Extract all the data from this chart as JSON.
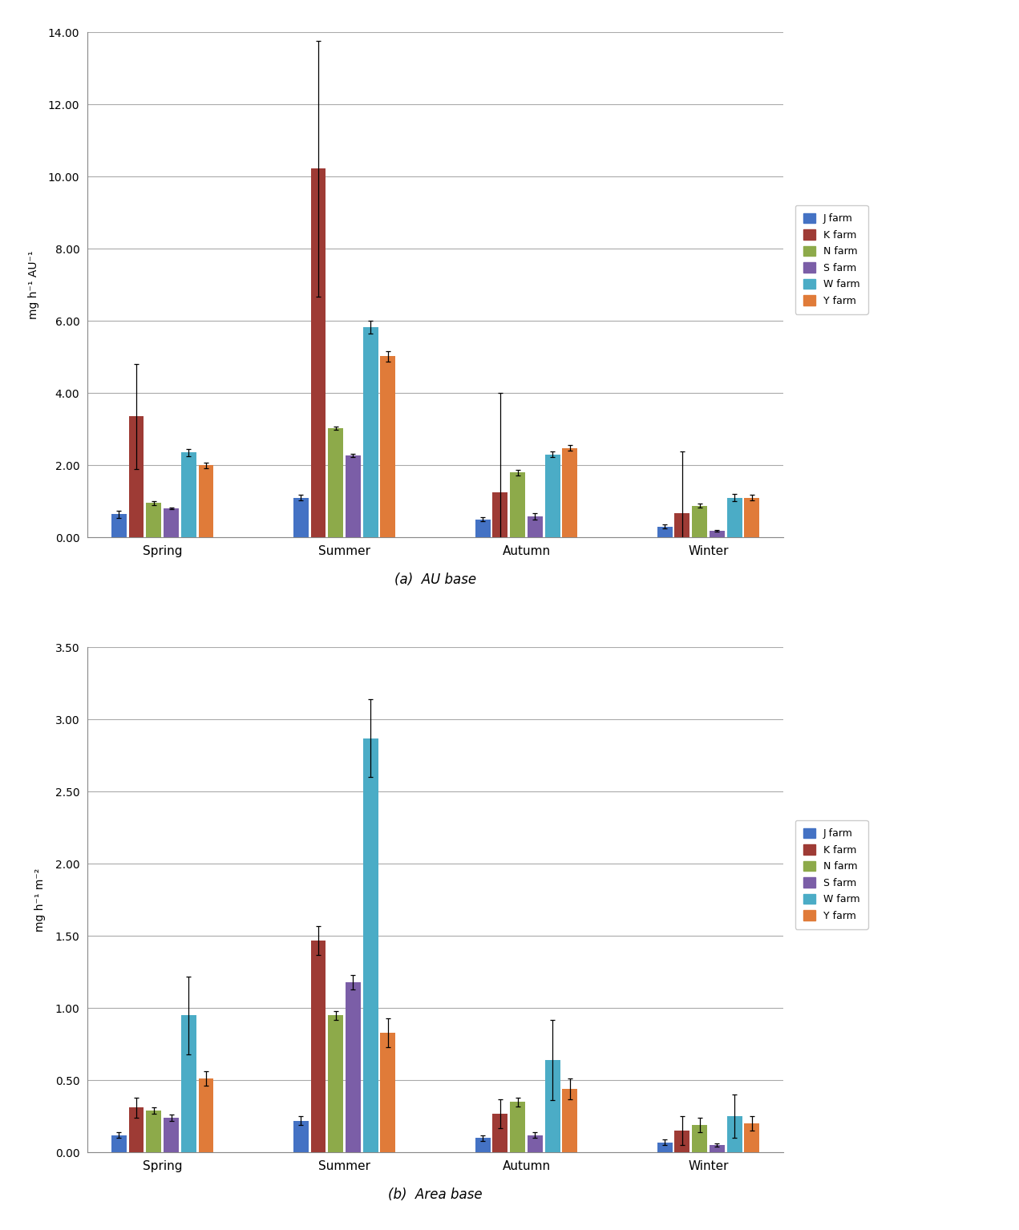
{
  "farms": [
    "J farm",
    "K farm",
    "N farm",
    "S farm",
    "W farm",
    "Y farm"
  ],
  "farm_colors": [
    "#4472C4",
    "#9E3B35",
    "#8DAA4A",
    "#7B5EA7",
    "#4BACC6",
    "#E07B39"
  ],
  "seasons": [
    "Spring",
    "Summer",
    "Autumn",
    "Winter"
  ],
  "au_values": [
    [
      0.64,
      3.35,
      0.95,
      0.8,
      2.35,
      2.0
    ],
    [
      1.1,
      10.22,
      3.02,
      2.27,
      5.82,
      5.02
    ],
    [
      0.5,
      1.25,
      1.8,
      0.58,
      2.3,
      2.48
    ],
    [
      0.3,
      0.68,
      0.88,
      0.18,
      1.1,
      1.1
    ]
  ],
  "au_errors": [
    [
      0.1,
      1.45,
      0.05,
      0.02,
      0.1,
      0.08
    ],
    [
      0.08,
      3.55,
      0.05,
      0.04,
      0.18,
      0.15
    ],
    [
      0.05,
      2.75,
      0.08,
      0.08,
      0.08,
      0.08
    ],
    [
      0.05,
      1.7,
      0.05,
      0.02,
      0.1,
      0.08
    ]
  ],
  "area_values": [
    [
      0.12,
      0.31,
      0.29,
      0.24,
      0.95,
      0.51
    ],
    [
      0.22,
      1.47,
      0.95,
      1.18,
      2.87,
      0.83
    ],
    [
      0.1,
      0.27,
      0.35,
      0.12,
      0.64,
      0.44
    ],
    [
      0.07,
      0.15,
      0.19,
      0.05,
      0.25,
      0.2
    ]
  ],
  "area_errors": [
    [
      0.02,
      0.07,
      0.02,
      0.02,
      0.27,
      0.05
    ],
    [
      0.03,
      0.1,
      0.03,
      0.05,
      0.27,
      0.1
    ],
    [
      0.02,
      0.1,
      0.03,
      0.02,
      0.28,
      0.07
    ],
    [
      0.02,
      0.1,
      0.05,
      0.01,
      0.15,
      0.05
    ]
  ],
  "ylabel_au": "mg h⁻¹ AU⁻¹",
  "ylabel_area": "mg h⁻¹ m⁻²",
  "caption_a": "(a)  AU base",
  "caption_b": "(b)  Area base",
  "ylim_au": [
    0,
    14.0
  ],
  "ylim_area": [
    0,
    3.5
  ],
  "yticks_au": [
    0.0,
    2.0,
    4.0,
    6.0,
    8.0,
    10.0,
    12.0,
    14.0
  ],
  "yticks_area": [
    0.0,
    0.5,
    1.0,
    1.5,
    2.0,
    2.5,
    3.0,
    3.5
  ]
}
